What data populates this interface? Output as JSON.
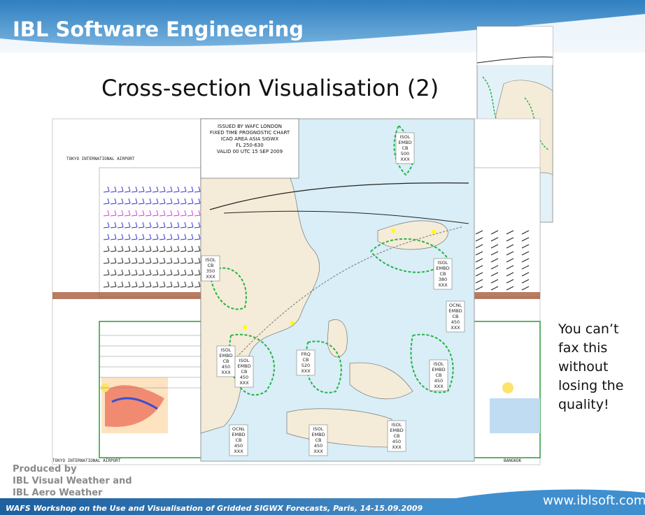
{
  "header": {
    "company": "IBL Software Engineering"
  },
  "slide": {
    "title": "Cross-section Visualisation (2)",
    "note_lines": [
      "You can’t",
      "fax this",
      "without",
      "losing the",
      "quality!"
    ],
    "credit_lines": [
      "Produced by",
      "IBL Visual Weather and",
      "IBL Aero Weather"
    ]
  },
  "cross_section": {
    "origin": "TOKYO INTERNATIONAL AIRPORT",
    "destination": "BANGKOK"
  },
  "map": {
    "header_lines": [
      "ISSUED BY WAFC LONDON",
      "FIXED TIME PROGNOSTIC CHART",
      "ICAO AREA ASIA SIGWX",
      "FL 250-630",
      "VALID 00 UTC 15 SEP 2009"
    ],
    "cb_labels": [
      [
        "ISOL",
        "EMBD",
        "CB",
        "500",
        "XXX"
      ],
      [
        "ISOL",
        "CB",
        "350",
        "XXX"
      ],
      [
        "ISOL",
        "EMBD",
        "CB",
        "450",
        "XXX"
      ],
      [
        "ISOL",
        "EMBD",
        "CB",
        "450",
        "XXX"
      ],
      [
        "FRQ",
        "CB",
        "520",
        "XXX"
      ],
      [
        "ISOL",
        "EMBD",
        "CB",
        "380",
        "XXX"
      ],
      [
        "OCNL",
        "EMBD",
        "CB",
        "450",
        "XXX"
      ],
      [
        "ISOL",
        "EMBD",
        "CB",
        "450",
        "XXX"
      ],
      [
        "OCNL",
        "EMBD",
        "CB",
        "450",
        "XXX"
      ],
      [
        "ISOL",
        "EMBD",
        "CB",
        "450",
        "XXX"
      ],
      [
        "ISOL",
        "EMBD",
        "CB",
        "450",
        "XXX"
      ]
    ]
  },
  "footer": {
    "event": "WAFS Workshop on the Use and Visualisation of Gridded SIGWX Forecasts, Paris, 14-15.09.2009",
    "url": "www.iblsoft.com"
  }
}
